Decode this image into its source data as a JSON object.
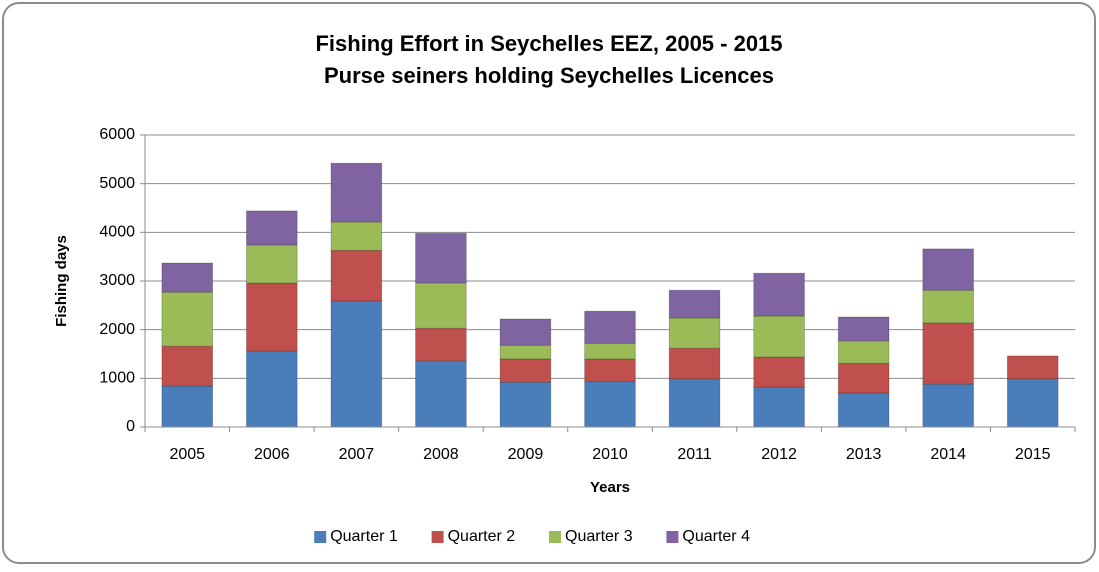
{
  "chart_data": {
    "type": "bar",
    "stacked": true,
    "title": "Fishing Effort in Seychelles EEZ, 2005 - 2015",
    "subtitle": "Purse seiners holding Seychelles Licences",
    "x_label": "Years",
    "y_label": "Fishing days",
    "categories": [
      "2005",
      "2006",
      "2007",
      "2008",
      "2009",
      "2010",
      "2011",
      "2012",
      "2013",
      "2014",
      "2015"
    ],
    "series": [
      {
        "name": "Quarter 1",
        "color": "#4a7ebb",
        "values": [
          840,
          1560,
          2590,
          1360,
          920,
          940,
          990,
          820,
          700,
          880,
          990
        ]
      },
      {
        "name": "Quarter 2",
        "color": "#c0504d",
        "values": [
          820,
          1400,
          1040,
          670,
          480,
          460,
          630,
          620,
          610,
          1260,
          470
        ]
      },
      {
        "name": "Quarter 3",
        "color": "#9bbb59",
        "values": [
          1110,
          780,
          580,
          930,
          280,
          320,
          620,
          840,
          460,
          670,
          0
        ]
      },
      {
        "name": "Quarter 4",
        "color": "#8064a2",
        "values": [
          600,
          700,
          1210,
          1020,
          540,
          660,
          570,
          880,
          490,
          850,
          0
        ]
      }
    ],
    "ylim": [
      0,
      6000
    ],
    "yticks": [
      0,
      1000,
      2000,
      3000,
      4000,
      5000,
      6000
    ],
    "grid": true,
    "legend": "bottom"
  }
}
